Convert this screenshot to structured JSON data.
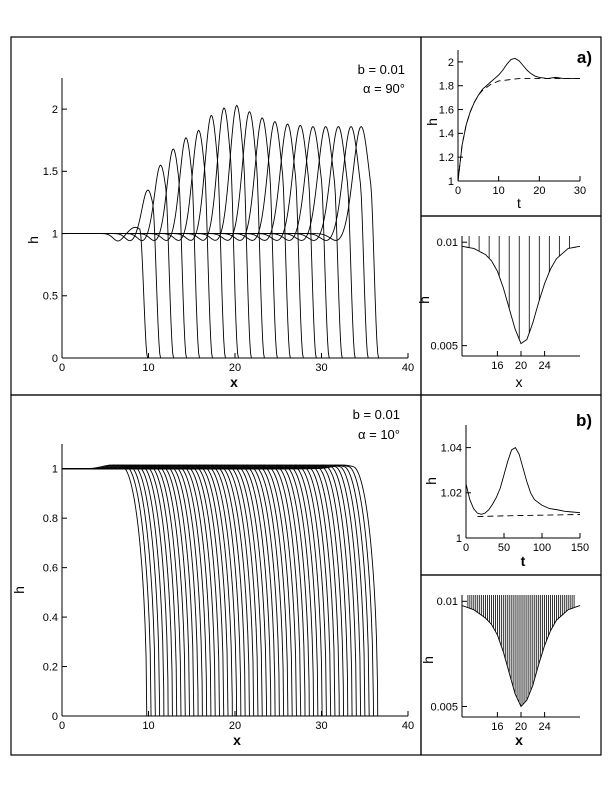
{
  "panels": {
    "top": {
      "params": [
        "b = 0.01",
        "α = 90°"
      ],
      "main": {
        "xlabel": "x",
        "ylabel": "h",
        "xlim": [
          0,
          40
        ],
        "ylim": [
          0,
          2.25
        ],
        "xticks": [
          "0",
          "10",
          "20",
          "30",
          "40"
        ],
        "yticks": [
          "0",
          "0.5",
          "1",
          "1.5",
          "2"
        ]
      },
      "time_panel": {
        "tag": "a)",
        "xlabel": "t",
        "ylabel": "h",
        "xlim": [
          0,
          30
        ],
        "ylim": [
          1,
          2.1
        ],
        "xticks": [
          "0",
          "10",
          "20",
          "30"
        ],
        "yticks": [
          "1",
          "1.2",
          "1.4",
          "1.6",
          "1.8",
          "2"
        ]
      },
      "precursor_panel": {
        "xlabel": "x",
        "ylabel": "h",
        "xlim": [
          10,
          30
        ],
        "ylim": [
          0.0045,
          0.0103
        ],
        "xticks": [
          "16",
          "20",
          "24"
        ],
        "yticks": [
          "0.005",
          "0.01"
        ]
      }
    },
    "bottom": {
      "params": [
        "b = 0.01",
        "α = 10°"
      ],
      "main": {
        "xlabel": "x",
        "ylabel": "h",
        "xlim": [
          0,
          40
        ],
        "ylim": [
          0,
          1.1
        ],
        "xticks": [
          "0",
          "10",
          "20",
          "30",
          "40"
        ],
        "yticks": [
          "0",
          "0.2",
          "0.4",
          "0.6",
          "0.8",
          "1"
        ]
      },
      "time_panel": {
        "tag": "b)",
        "xlabel": "t",
        "ylabel": "h",
        "xlim": [
          0,
          150
        ],
        "ylim": [
          1,
          1.05
        ],
        "xticks": [
          "0",
          "50",
          "100",
          "150"
        ],
        "yticks": [
          "1",
          "1.02",
          "1.04"
        ]
      },
      "precursor_panel": {
        "xlabel": "x",
        "ylabel": "h",
        "xlim": [
          10,
          30
        ],
        "ylim": [
          0.0045,
          0.0103
        ],
        "xticks": [
          "16",
          "20",
          "24"
        ],
        "yticks": [
          "0.005",
          "0.01"
        ]
      }
    }
  },
  "chart_data": [
    {
      "type": "line",
      "panel": "top-main",
      "title": "",
      "xlabel": "x",
      "ylabel": "h",
      "xlim": [
        0,
        40
      ],
      "ylim": [
        0,
        2.25
      ],
      "grid": false,
      "annotations": [
        "b = 0.01",
        "α = 90°"
      ],
      "fronts": [
        {
          "front_x": 9.9,
          "capillary_peak": 1.05
        },
        {
          "front_x": 11.4,
          "capillary_peak": 1.35
        },
        {
          "front_x": 12.9,
          "capillary_peak": 1.55
        },
        {
          "front_x": 14.4,
          "capillary_peak": 1.68
        },
        {
          "front_x": 15.9,
          "capillary_peak": 1.77
        },
        {
          "front_x": 17.4,
          "capillary_peak": 1.83
        },
        {
          "front_x": 18.9,
          "capillary_peak": 1.95
        },
        {
          "front_x": 20.4,
          "capillary_peak": 2.01
        },
        {
          "front_x": 21.9,
          "capillary_peak": 2.03
        },
        {
          "front_x": 23.4,
          "capillary_peak": 1.98
        },
        {
          "front_x": 24.9,
          "capillary_peak": 1.93
        },
        {
          "front_x": 26.4,
          "capillary_peak": 1.9
        },
        {
          "front_x": 27.9,
          "capillary_peak": 1.88
        },
        {
          "front_x": 29.4,
          "capillary_peak": 1.87
        },
        {
          "front_x": 30.9,
          "capillary_peak": 1.86
        },
        {
          "front_x": 32.4,
          "capillary_peak": 1.86
        },
        {
          "front_x": 33.9,
          "capillary_peak": 1.86
        },
        {
          "front_x": 35.4,
          "capillary_peak": 1.86
        },
        {
          "front_x": 36.6,
          "capillary_peak": 1.86
        }
      ],
      "upstream_level": 1
    },
    {
      "type": "line",
      "panel": "top-time",
      "title": "a)",
      "xlabel": "t",
      "ylabel": "h",
      "xlim": [
        0,
        30
      ],
      "ylim": [
        1,
        2.1
      ],
      "series": [
        {
          "x": [
            0,
            1,
            2,
            3,
            4,
            5,
            6,
            7,
            8,
            9,
            10,
            11,
            12,
            13,
            14,
            15,
            16,
            17,
            18,
            19,
            20,
            22,
            24,
            26,
            28,
            30
          ],
          "y": [
            1.0,
            1.3,
            1.47,
            1.58,
            1.66,
            1.72,
            1.77,
            1.8,
            1.83,
            1.86,
            1.89,
            1.93,
            1.98,
            2.02,
            2.03,
            2.01,
            1.97,
            1.93,
            1.9,
            1.88,
            1.87,
            1.86,
            1.87,
            1.86,
            1.86,
            1.86
          ]
        },
        {
          "x": [
            0,
            1,
            2,
            3,
            4,
            5,
            6,
            8,
            10,
            15,
            20,
            25,
            30
          ],
          "y": [
            1.0,
            1.3,
            1.47,
            1.58,
            1.66,
            1.72,
            1.76,
            1.81,
            1.84,
            1.86,
            1.86,
            1.86,
            1.86
          ],
          "style": "dashed"
        }
      ]
    },
    {
      "type": "line",
      "panel": "top-precursor",
      "xlabel": "x",
      "ylabel": "h",
      "xlim": [
        10,
        30
      ],
      "ylim": [
        0.0045,
        0.0103
      ],
      "series": [
        {
          "x": [
            10,
            12,
            14,
            15,
            16,
            17,
            18,
            19,
            20,
            21,
            22,
            23,
            24,
            25,
            26,
            28,
            30
          ],
          "y": [
            0.0098,
            0.0097,
            0.0094,
            0.0091,
            0.0086,
            0.0078,
            0.0068,
            0.0058,
            0.0051,
            0.0053,
            0.0061,
            0.0071,
            0.008,
            0.0087,
            0.0092,
            0.0097,
            0.0098
          ]
        }
      ],
      "front_positions": [
        11.2,
        12.9,
        14.6,
        16.3,
        18.0,
        19.7,
        21.4,
        23.1,
        24.8,
        26.5,
        28.2
      ]
    },
    {
      "type": "line",
      "panel": "bottom-main",
      "title": "",
      "xlabel": "x",
      "ylabel": "h",
      "xlim": [
        0,
        40
      ],
      "ylim": [
        0,
        1.1
      ],
      "grid": false,
      "annotations": [
        "b = 0.01",
        "α = 10°"
      ],
      "front_x_start": 9.8,
      "front_x_end": 36.5,
      "front_count": 55,
      "upstream_level": 1,
      "max_overshoot": 1.015
    },
    {
      "type": "line",
      "panel": "bottom-time",
      "title": "b)",
      "xlabel": "t",
      "ylabel": "h",
      "xlim": [
        0,
        150
      ],
      "ylim": [
        1,
        1.05
      ],
      "series": [
        {
          "x": [
            0,
            5,
            10,
            15,
            20,
            25,
            30,
            35,
            40,
            45,
            50,
            55,
            60,
            65,
            70,
            75,
            80,
            85,
            90,
            100,
            110,
            120,
            130,
            140,
            150
          ],
          "y": [
            1.024,
            1.017,
            1.013,
            1.011,
            1.0105,
            1.011,
            1.0125,
            1.015,
            1.018,
            1.022,
            1.028,
            1.034,
            1.039,
            1.04,
            1.037,
            1.031,
            1.025,
            1.02,
            1.017,
            1.0145,
            1.013,
            1.0125,
            1.0118,
            1.0115,
            1.0112
          ]
        },
        {
          "x": [
            15,
            50,
            100,
            150
          ],
          "y": [
            1.0095,
            1.0098,
            1.0101,
            1.0104
          ],
          "style": "dashed"
        }
      ]
    },
    {
      "type": "line",
      "panel": "bottom-precursor",
      "xlabel": "x",
      "ylabel": "h",
      "xlim": [
        10,
        30
      ],
      "ylim": [
        0.0045,
        0.0103
      ],
      "series": [
        {
          "x": [
            10,
            12,
            14,
            15,
            16,
            17,
            18,
            19,
            20,
            21,
            22,
            23,
            24,
            25,
            26,
            28,
            30
          ],
          "y": [
            0.0098,
            0.0096,
            0.0092,
            0.0089,
            0.0084,
            0.0076,
            0.0066,
            0.0056,
            0.005,
            0.0053,
            0.006,
            0.007,
            0.0079,
            0.0086,
            0.0091,
            0.0096,
            0.0098
          ]
        }
      ],
      "front_start": 11.0,
      "front_end": 29.0,
      "front_count": 55
    }
  ]
}
